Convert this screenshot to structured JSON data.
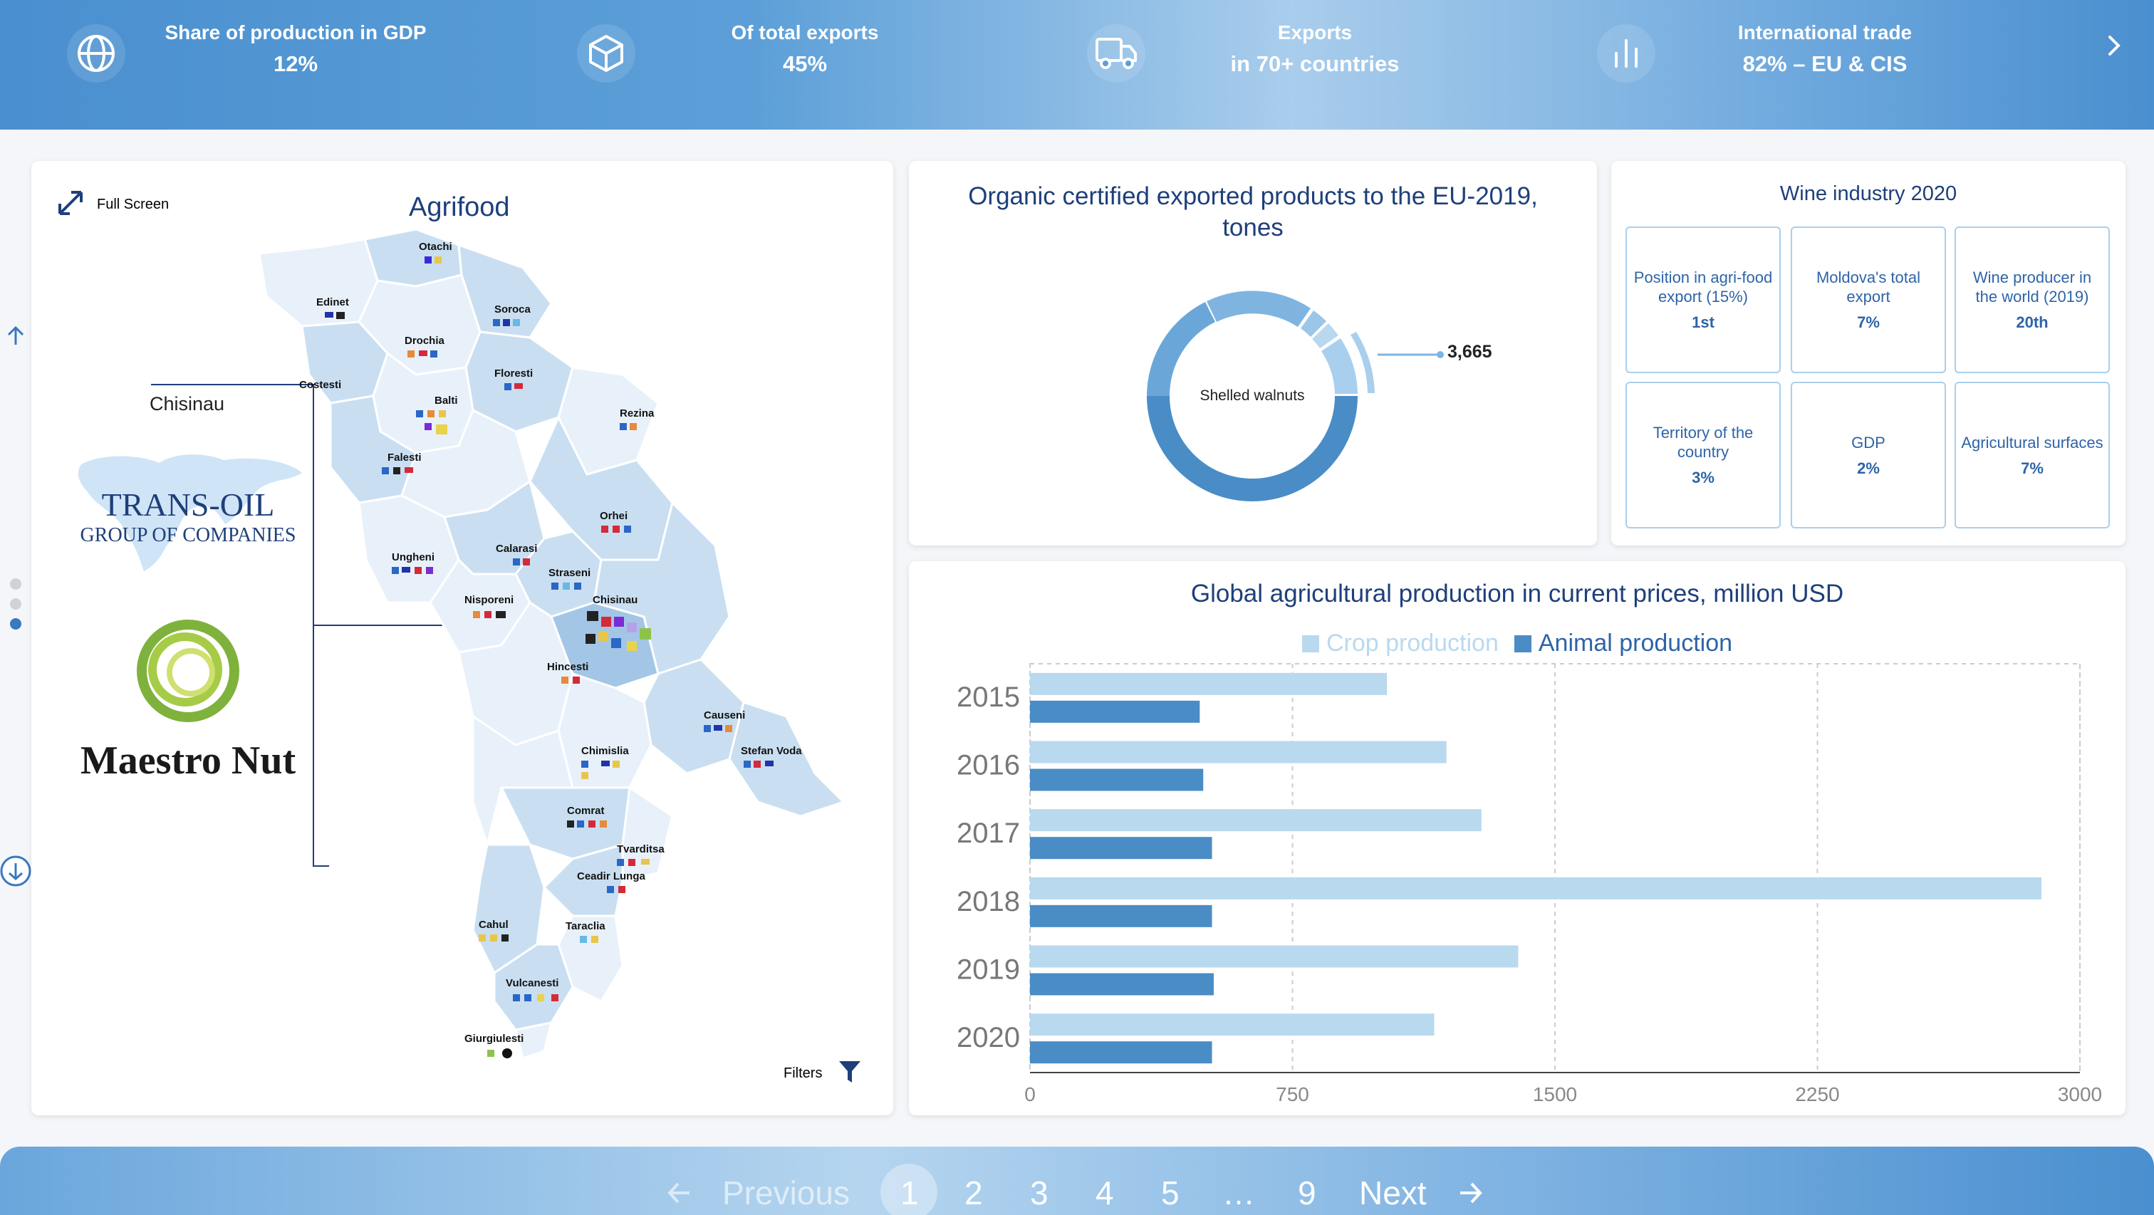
{
  "topbar": {
    "stats": [
      {
        "label": "Share of production in GDP",
        "value": "12%",
        "icon": "globe-icon"
      },
      {
        "label": "Of total exports",
        "value": "45%",
        "icon": "box-icon"
      },
      {
        "label": "Exports",
        "value": "in 70+ countries",
        "icon": "truck-icon"
      },
      {
        "label": "International trade",
        "value": "82% – EU & CIS",
        "icon": "bar-chart-icon"
      }
    ],
    "next_icon": "chevron-right-icon"
  },
  "map_card": {
    "full_screen_label": "Full Screen",
    "title": "Agrifood",
    "city_label": "Chisinau",
    "logo1_line1": "TRANS-OIL",
    "logo1_line2": "GROUP OF COMPANIES",
    "logo2_text": "Maestro Nut",
    "filters_label": "Filters",
    "regions": [
      "Otachi",
      "Edinet",
      "Soroca",
      "Drochia",
      "Floresti",
      "Costesti",
      "Balti",
      "Rezina",
      "Falesti",
      "Orhei",
      "Ungheni",
      "Calarasi",
      "Straseni",
      "Nisporeni",
      "Chisinau",
      "Hincesti",
      "Causeni",
      "Chimislia",
      "Stefan Voda",
      "Comrat",
      "Tvarditsa",
      "Ceadir Lunga",
      "Cahul",
      "Taraclia",
      "Vulcanesti",
      "Giurgiulesti"
    ]
  },
  "donut_card": {
    "title_line1": "Organic certified exported products to the EU-2019,",
    "title_line2": "tones",
    "center_label": "Shelled walnuts",
    "callout_value": "3,665"
  },
  "wine_card": {
    "title": "Wine industry 2020",
    "tiles": [
      {
        "label": "Position in agri-food export (15%)",
        "value": "1st"
      },
      {
        "label": "Moldova's total export",
        "value": "7%"
      },
      {
        "label": "Wine producer in the world (2019)",
        "value": "20th"
      },
      {
        "label": "Territory of the country",
        "value": "3%"
      },
      {
        "label": "GDP",
        "value": "2%"
      },
      {
        "label": "Agricultural surfaces",
        "value": "7%"
      }
    ]
  },
  "chart_data": {
    "type": "bar",
    "orientation": "horizontal",
    "title": "Global agricultural production in current prices, million USD",
    "categories": [
      "2015",
      "2016",
      "2017",
      "2018",
      "2019",
      "2020"
    ],
    "series": [
      {
        "name": "Crop production",
        "color": "#b9d9ef",
        "values": [
          1020,
          1190,
          1290,
          2890,
          1395,
          1155
        ]
      },
      {
        "name": "Animal production",
        "color": "#4a8cc6",
        "values": [
          485,
          495,
          520,
          520,
          525,
          520
        ]
      }
    ],
    "xlim": [
      0,
      3000
    ],
    "xticks": [
      0,
      750,
      1500,
      2250,
      3000
    ],
    "grid": true,
    "legend": "top"
  },
  "pagination": {
    "previous": "Previous",
    "pages": [
      "1",
      "2",
      "3",
      "4",
      "5",
      "…",
      "9"
    ],
    "next": "Next",
    "current": "1"
  },
  "colors": {
    "accent": "#4a8fcf",
    "title_blue": "#1e3f7a",
    "map_light": "#e8f1fa",
    "map_mid": "#c9dff1",
    "map_dark": "#a3c6e6"
  }
}
